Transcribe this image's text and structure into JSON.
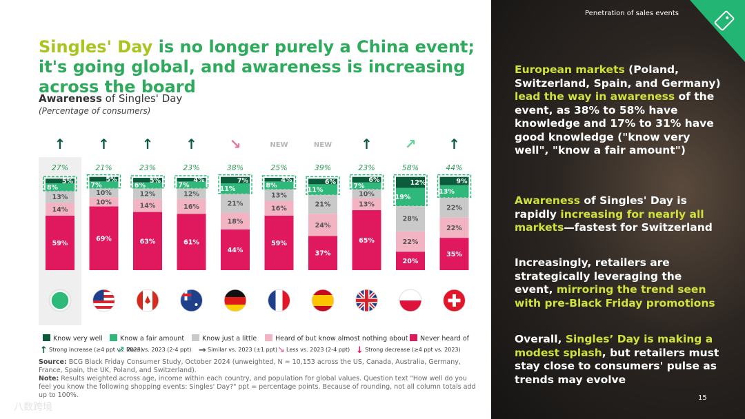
{
  "header": {
    "section": "Penetration of sales events",
    "page": "15"
  },
  "title_parts": [
    "Singles' Day",
    " is no longer purely a China event; it's going global, and awareness is increasing across the board"
  ],
  "chart_data": {
    "type": "stacked_bar",
    "title_bold": "Awareness",
    "title": " of Singles' Day",
    "subtitle": "(Percentage of consumers)",
    "categories": [
      null,
      null,
      null,
      null,
      null,
      null,
      null,
      null,
      null,
      null
    ],
    "ylim": [
      0,
      100
    ],
    "series": [
      {
        "name": "Never heard of",
        "color": "#e0185e",
        "values": [
          59,
          69,
          63,
          61,
          44,
          59,
          37,
          65,
          20,
          35
        ],
        "value_labels": [
          "59%",
          "69%",
          "63%",
          "61%",
          "44%",
          "59%",
          "37%",
          "65%",
          "20%",
          "35%"
        ]
      },
      {
        "name": "Heard of but know almost nothing about",
        "color": "#f2b3c3",
        "values": [
          14,
          10,
          14,
          16,
          18,
          16,
          24,
          13,
          22,
          22
        ],
        "value_labels": [
          "14%",
          "10%",
          "14%",
          "16%",
          "18%",
          "16%",
          "24%",
          "13%",
          "22%",
          "22%"
        ]
      },
      {
        "name": "Know just a little",
        "color": "#c9c9c9",
        "values": [
          13,
          10,
          12,
          12,
          21,
          13,
          21,
          10,
          28,
          22
        ],
        "value_labels": [
          "13%",
          "10%",
          "12%",
          "12%",
          "21%",
          "13%",
          "21%",
          "10%",
          "28%",
          "22%"
        ]
      },
      {
        "name": "Know a fair amount",
        "color": "#2eb87a",
        "values": [
          8,
          7,
          6,
          7,
          11,
          8,
          11,
          7,
          19,
          13
        ],
        "value_labels": [
          "8%",
          "7%",
          "6%",
          "7%",
          "11%",
          "8%",
          "11%",
          "7%",
          "19%",
          "13%"
        ]
      },
      {
        "name": "Know very well",
        "color": "#0b5c3a",
        "values": [
          5,
          5,
          5,
          4,
          7,
          4,
          6,
          6,
          12,
          9
        ],
        "value_labels": [
          "5%",
          "5%",
          "5%",
          "4%",
          "7%",
          "4%",
          "6%",
          "6%",
          "12%",
          "9%"
        ]
      }
    ],
    "totals": {
      "values": [
        27,
        21,
        23,
        23,
        38,
        25,
        39,
        23,
        58,
        44
      ],
      "value_labels": [
        "27%",
        "21%",
        "23%",
        "23%",
        "38%",
        "25%",
        "39%",
        "23%",
        "58%",
        "44%"
      ]
    },
    "trend": [
      "↑",
      "↑",
      "↑",
      "↑",
      "↘",
      "NEW",
      "NEW",
      "↑",
      "↗",
      "↑"
    ],
    "trend_colors": [
      "#0b5c3a",
      "#0b5c3a",
      "#0b5c3a",
      "#0b5c3a",
      "#e8739a",
      "#b5b5b5",
      "#b5b5b5",
      "#0b5c3a",
      "#5fd39a",
      "#0b5c3a"
    ],
    "trend_legend": [
      {
        "symbol": "↑",
        "color": "#0b5c3a",
        "label": "Strong increase (≥4 ppt vs. 2023)"
      },
      {
        "symbol": "↗",
        "color": "#2eb87a",
        "label": "More vs. 2023 (2-4 ppt)"
      },
      {
        "symbol": "→",
        "color": "#555555",
        "label": "Similar vs. 2023 (±1 ppt)"
      },
      {
        "symbol": "↘",
        "color": "#e8739a",
        "label": "Less vs. 2023 (2-4 ppt)"
      },
      {
        "symbol": "↓",
        "color": "#e0185e",
        "label": "Strong decrease (≥4 ppt vs. 2023)"
      }
    ]
  },
  "source_label": "Source:",
  "source": " BCG Black Friday Consumer Study, October 2024 (unweighted, N = 10,153 across the US, Canada, Australia, Germany, France, Spain, the UK, Poland, and Switzerland).",
  "note_label": "Note:",
  "note": " Results weighted across age, income within each country, and population for global values. Question text \"How well do you feel you know the following shopping events: Singles' Day?\" ppt = percentage points. Because of rounding, not all column totals add up to 100%.",
  "watermark": "八数跨境",
  "sidebar": [
    [
      {
        "text": "European markets",
        "highlight": true
      },
      {
        "text": " (Poland, Switzerland, Spain, and Germany) ",
        "highlight": false
      },
      {
        "text": "lead the way in awareness",
        "highlight": true
      },
      {
        "text": " of the event, as 38% to 58% have knowledge and 17% to 31% have good knowledge (\"know very well\", \"know a fair amount\")",
        "highlight": false
      }
    ],
    [
      {
        "text": "Awareness",
        "highlight": true
      },
      {
        "text": " of Singles' Day is rapidly ",
        "highlight": false
      },
      {
        "text": "increasing for nearly all markets",
        "highlight": true
      },
      {
        "text": "—fastest for Switzerland",
        "highlight": false
      }
    ],
    [
      {
        "text": "Increasingly, retailers are strategically leveraging the event, ",
        "highlight": false
      },
      {
        "text": "mirroring the trend seen with pre-Black Friday promotions",
        "highlight": true
      }
    ],
    [
      {
        "text": "Overall, ",
        "highlight": false
      },
      {
        "text": "Singles’ Day is making a modest splash",
        "highlight": true
      },
      {
        "text": ", but retailers must stay close to consumers' pulse as trends may evolve",
        "highlight": false
      }
    ]
  ]
}
